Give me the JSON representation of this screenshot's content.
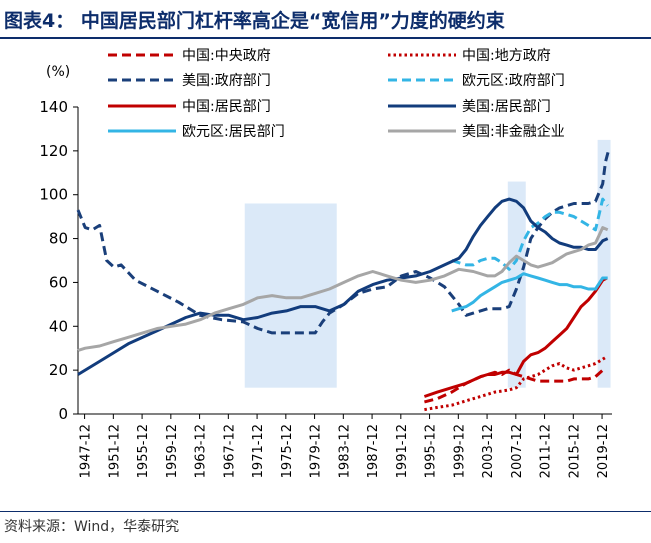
{
  "page": {
    "title": "图表4： 中国居民部门杠杆率高企是“宽信用”力度的硬约束",
    "source": "资料来源：Wind，华泰研究"
  },
  "chart_data": {
    "type": "line",
    "unit_label": "(%)",
    "ylim": [
      0,
      140
    ],
    "y_ticks": [
      0,
      20,
      40,
      60,
      80,
      100,
      120,
      140
    ],
    "xlim": [
      1947,
      2021.3
    ],
    "x_ticks": [
      "1947-12",
      "1951-12",
      "1955-12",
      "1959-12",
      "1963-12",
      "1967-12",
      "1971-12",
      "1975-12",
      "1979-12",
      "1983-12",
      "1987-12",
      "1991-12",
      "1995-12",
      "1999-12",
      "2003-12",
      "2007-12",
      "2011-12",
      "2015-12",
      "2019-12"
    ],
    "shaded_periods": [
      {
        "from": 1970.2,
        "to": 1983.0,
        "y_from": 12,
        "y_to": 96
      },
      {
        "from": 2006.8,
        "to": 2009.3,
        "y_from": 12,
        "y_to": 106
      },
      {
        "from": 2019.3,
        "to": 2021.1,
        "y_from": 12,
        "y_to": 125
      }
    ],
    "series": [
      {
        "name": "中国:中央政府",
        "color": "#c00000",
        "style": "dashed",
        "x": [
          1995.2,
          1997,
          1999,
          2001,
          2003,
          2004,
          2005,
          2006,
          2007,
          2008,
          2009,
          2010,
          2011,
          2012,
          2013,
          2014,
          2015,
          2016,
          2017,
          2018,
          2019,
          2020,
          2020.5
        ],
        "y": [
          5.5,
          7,
          10,
          14,
          17,
          18,
          19,
          18,
          20,
          18,
          17,
          16,
          15,
          15,
          15,
          15,
          15,
          16,
          16,
          16,
          17,
          20,
          21
        ]
      },
      {
        "name": "中国:地方政府",
        "color": "#c00000",
        "style": "dotted",
        "x": [
          1995.2,
          1997,
          1999,
          2001,
          2003,
          2005,
          2007,
          2008,
          2009,
          2010,
          2011,
          2012,
          2013,
          2014,
          2015,
          2016,
          2017,
          2018,
          2019,
          2020,
          2020.5
        ],
        "y": [
          2,
          3,
          4,
          6,
          8,
          10,
          11,
          12,
          16,
          17,
          18,
          20,
          22,
          23,
          21,
          20,
          21,
          22,
          23,
          25,
          26
        ]
      },
      {
        "name": "美国:政府部门",
        "color": "#1a3f7a",
        "style": "dashed",
        "x": [
          1947,
          1948,
          1949,
          1950,
          1951,
          1952,
          1953,
          1955,
          1958,
          1961,
          1964,
          1967,
          1970,
          1972,
          1974,
          1976,
          1978,
          1980,
          1981,
          1982,
          1984,
          1986,
          1988,
          1990,
          1992,
          1994,
          1996,
          1998,
          2000,
          2001,
          2002,
          2004,
          2006,
          2007,
          2008,
          2009,
          2010,
          2011,
          2012,
          2013,
          2014,
          2016,
          2018,
          2019,
          2020,
          2020.4,
          2020.8
        ],
        "y": [
          93,
          85,
          84,
          86,
          70,
          67,
          68,
          61,
          56,
          51,
          45,
          43,
          42,
          39,
          37,
          37,
          37,
          37,
          42,
          46,
          50,
          55,
          57,
          58,
          63,
          65,
          62,
          58,
          50,
          45,
          46,
          48,
          48,
          49,
          57,
          67,
          80,
          85,
          89,
          92,
          94,
          96,
          96,
          97,
          105,
          115,
          120
        ]
      },
      {
        "name": "欧元区:政府部门",
        "color": "#33b5e5",
        "style": "dashed",
        "x": [
          1999,
          2000,
          2001,
          2002,
          2003,
          2004,
          2005,
          2006,
          2007,
          2008,
          2009,
          2010,
          2011,
          2012,
          2013,
          2014,
          2015,
          2016,
          2017,
          2018,
          2019,
          2020,
          2020.7
        ],
        "y": [
          70,
          69,
          68,
          68,
          70,
          71,
          71,
          69,
          66,
          70,
          79,
          85,
          87,
          90,
          92,
          92,
          91,
          90,
          88,
          86,
          84,
          98,
          95
        ]
      },
      {
        "name": "中国:居民部门",
        "color": "#c00000",
        "style": "solid",
        "x": [
          1995.2,
          1997,
          1999,
          2001,
          2003,
          2004,
          2005,
          2006,
          2007,
          2008,
          2009,
          2010,
          2011,
          2012,
          2013,
          2014,
          2015,
          2016,
          2017,
          2018,
          2019,
          2020,
          2020.6
        ],
        "y": [
          8,
          10,
          12,
          14,
          17,
          18,
          18,
          19,
          19,
          18,
          24,
          27,
          28,
          30,
          33,
          36,
          39,
          44,
          49,
          52,
          56,
          61,
          62
        ]
      },
      {
        "name": "美国:居民部门",
        "color": "#123c7c",
        "style": "solid",
        "x": [
          1947,
          1948,
          1950,
          1952,
          1954,
          1956,
          1958,
          1960,
          1962,
          1964,
          1966,
          1968,
          1970,
          1972,
          1974,
          1976,
          1978,
          1980,
          1982,
          1984,
          1986,
          1988,
          1990,
          1992,
          1994,
          1996,
          1998,
          2000,
          2001,
          2002,
          2003,
          2004,
          2005,
          2006,
          2007,
          2008,
          2009,
          2010,
          2011,
          2012,
          2013,
          2014,
          2015,
          2016,
          2017,
          2018,
          2019,
          2020,
          2020.7
        ],
        "y": [
          18,
          20,
          24,
          28,
          32,
          35,
          38,
          41,
          44,
          46,
          45,
          45,
          43,
          44,
          46,
          47,
          49,
          49,
          47,
          50,
          56,
          59,
          61,
          62,
          63,
          65,
          68,
          71,
          75,
          81,
          86,
          90,
          94,
          97,
          98,
          97,
          94,
          88,
          85,
          83,
          80,
          78,
          77,
          76,
          76,
          75,
          75,
          79,
          80
        ]
      },
      {
        "name": "欧元区:居民部门",
        "color": "#33b5e5",
        "style": "solid",
        "x": [
          1999,
          2000,
          2001,
          2002,
          2003,
          2004,
          2005,
          2006,
          2007,
          2008,
          2009,
          2010,
          2011,
          2012,
          2013,
          2014,
          2015,
          2016,
          2017,
          2018,
          2019,
          2020,
          2020.7
        ],
        "y": [
          47,
          48,
          49,
          51,
          54,
          56,
          58,
          60,
          61,
          62,
          64,
          63,
          62,
          61,
          60,
          59,
          59,
          58,
          58,
          57,
          57,
          62,
          62
        ]
      },
      {
        "name": "美国:非金融企业",
        "color": "#a6a6a6",
        "style": "solid",
        "x": [
          1947,
          1948,
          1950,
          1952,
          1954,
          1956,
          1958,
          1960,
          1962,
          1964,
          1966,
          1968,
          1970,
          1972,
          1974,
          1976,
          1978,
          1980,
          1982,
          1984,
          1986,
          1988,
          1990,
          1992,
          1994,
          1996,
          1998,
          2000,
          2002,
          2004,
          2005,
          2006,
          2007,
          2008,
          2009,
          2010,
          2011,
          2012,
          2013,
          2014,
          2015,
          2016,
          2017,
          2018,
          2019,
          2020,
          2020.7
        ],
        "y": [
          29,
          30,
          31,
          33,
          35,
          37,
          39,
          40,
          41,
          43,
          46,
          48,
          50,
          53,
          54,
          53,
          53,
          55,
          57,
          60,
          63,
          65,
          63,
          61,
          60,
          61,
          63,
          66,
          65,
          63,
          63,
          65,
          69,
          72,
          70,
          68,
          67,
          68,
          69,
          71,
          73,
          74,
          75,
          77,
          78,
          85,
          84
        ]
      }
    ]
  }
}
